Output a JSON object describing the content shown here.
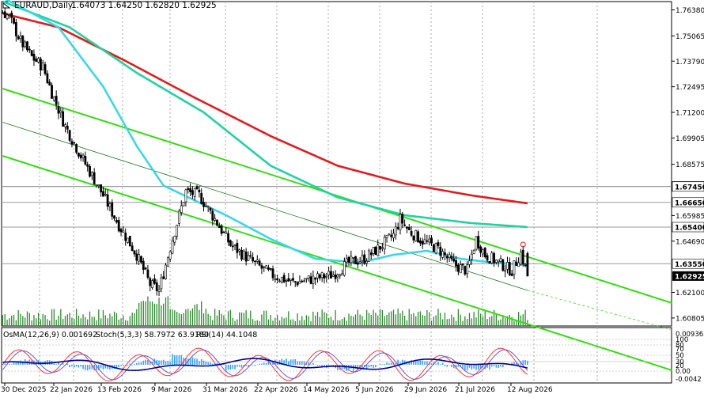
{
  "header": {
    "symbol": "EURAUD,Daily",
    "ohlc": "1.64073 1.64250 1.62820 1.62925"
  },
  "indicators": {
    "osma": "OsMA(12,26,9) 0.001692",
    "stoch": "Stoch(5,3,3) 58.7972 63.9180",
    "rsi": "RSI(14) 44.1048"
  },
  "colors": {
    "grid": "#a9a9a9",
    "candle": "#000000",
    "volume": "#2e8b2e",
    "ema200": "#e31a1c",
    "ema144": "#1fd3a0",
    "ema50": "#38d8e8",
    "channel": "#33dd11",
    "midline": "#1c7a1c",
    "macd_hist": "#3aa0ff",
    "stoch_main": "#ff3333",
    "stoch_signal": "#6a5acd",
    "rsi": "#00008b",
    "price_tag": "#000000"
  },
  "chart_data": {
    "type": "candlestick",
    "symbol": "EURAUD",
    "timeframe": "Daily",
    "ylim": [
      1.604,
      1.768
    ],
    "y_ticks": [
      "1.76380",
      "1.75065",
      "1.73790",
      "1.72495",
      "1.71200",
      "1.69905",
      "1.68575",
      "1.65985",
      "1.64690",
      "1.62100",
      "1.60805"
    ],
    "y_ticks_values": [
      1.7638,
      1.75065,
      1.7379,
      1.72495,
      1.712,
      1.69905,
      1.68575,
      1.65985,
      1.6469,
      1.621,
      1.60805
    ],
    "price_labels": [
      {
        "label": "1.67460",
        "value": 1.6746
      },
      {
        "label": "1.67450",
        "value": 1.6745
      },
      {
        "label": "1.66650",
        "value": 1.6665
      },
      {
        "label": "1.65400",
        "value": 1.654
      },
      {
        "label": "1.63550",
        "value": 1.6355
      },
      {
        "label": "1.62925",
        "value": 1.62925,
        "current": true
      }
    ],
    "x_labels": [
      "30 Dec 2025",
      "22 Jan 2026",
      "13 Feb 2026",
      "9 Mar 2026",
      "31 Mar 2026",
      "22 Apr 2026",
      "14 May 2026",
      "5 Jun 2026",
      "29 Jun 2026",
      "21 Jul 2026",
      "12 Aug 2026"
    ],
    "close_path": [
      [
        0,
        1.763
      ],
      [
        3,
        1.76
      ],
      [
        8,
        1.748
      ],
      [
        13,
        1.74
      ],
      [
        18,
        1.735
      ],
      [
        22,
        1.722
      ],
      [
        28,
        1.705
      ],
      [
        35,
        1.69
      ],
      [
        45,
        1.67
      ],
      [
        52,
        1.655
      ],
      [
        60,
        1.64
      ],
      [
        66,
        1.625
      ],
      [
        70,
        1.622
      ],
      [
        76,
        1.648
      ],
      [
        82,
        1.672
      ],
      [
        88,
        1.67
      ],
      [
        95,
        1.658
      ],
      [
        102,
        1.645
      ],
      [
        110,
        1.638
      ],
      [
        120,
        1.63
      ],
      [
        130,
        1.626
      ],
      [
        140,
        1.628
      ],
      [
        148,
        1.63
      ],
      [
        155,
        1.636
      ],
      [
        162,
        1.638
      ],
      [
        168,
        1.643
      ],
      [
        175,
        1.65
      ],
      [
        178,
        1.658
      ],
      [
        182,
        1.652
      ],
      [
        188,
        1.647
      ],
      [
        195,
        1.643
      ],
      [
        202,
        1.635
      ],
      [
        208,
        1.632
      ],
      [
        212,
        1.648
      ],
      [
        216,
        1.64
      ],
      [
        222,
        1.636
      ],
      [
        228,
        1.632
      ],
      [
        232,
        1.641
      ],
      [
        235,
        1.6293
      ]
    ],
    "ma200_path": [
      [
        0,
        1.762
      ],
      [
        25,
        1.755
      ],
      [
        55,
        1.738
      ],
      [
        85,
        1.72
      ],
      [
        120,
        1.7
      ],
      [
        150,
        1.685
      ],
      [
        180,
        1.676
      ],
      [
        210,
        1.67
      ],
      [
        235,
        1.666
      ]
    ],
    "ma144_path": [
      [
        0,
        1.768
      ],
      [
        30,
        1.755
      ],
      [
        60,
        1.732
      ],
      [
        90,
        1.712
      ],
      [
        120,
        1.685
      ],
      [
        150,
        1.669
      ],
      [
        180,
        1.66
      ],
      [
        210,
        1.656
      ],
      [
        235,
        1.654
      ]
    ],
    "ma50_path": [
      [
        0,
        1.77
      ],
      [
        25,
        1.755
      ],
      [
        45,
        1.725
      ],
      [
        60,
        1.695
      ],
      [
        72,
        1.675
      ],
      [
        85,
        1.668
      ],
      [
        100,
        1.66
      ],
      [
        120,
        1.648
      ],
      [
        140,
        1.638
      ],
      [
        160,
        1.636
      ],
      [
        175,
        1.64
      ],
      [
        190,
        1.642
      ],
      [
        205,
        1.638
      ],
      [
        220,
        1.636
      ],
      [
        235,
        1.635
      ]
    ],
    "channel_upper": [
      [
        0,
        1.724
      ],
      [
        235,
        1.639
      ]
    ],
    "channel_lower": [
      [
        0,
        1.69
      ],
      [
        235,
        1.605
      ]
    ],
    "channel_mid": [
      [
        0,
        1.707
      ],
      [
        235,
        1.622
      ],
      [
        300,
        1.602
      ]
    ],
    "time_markers": [
      108,
      140,
      170,
      172,
      172,
      198
    ]
  }
}
